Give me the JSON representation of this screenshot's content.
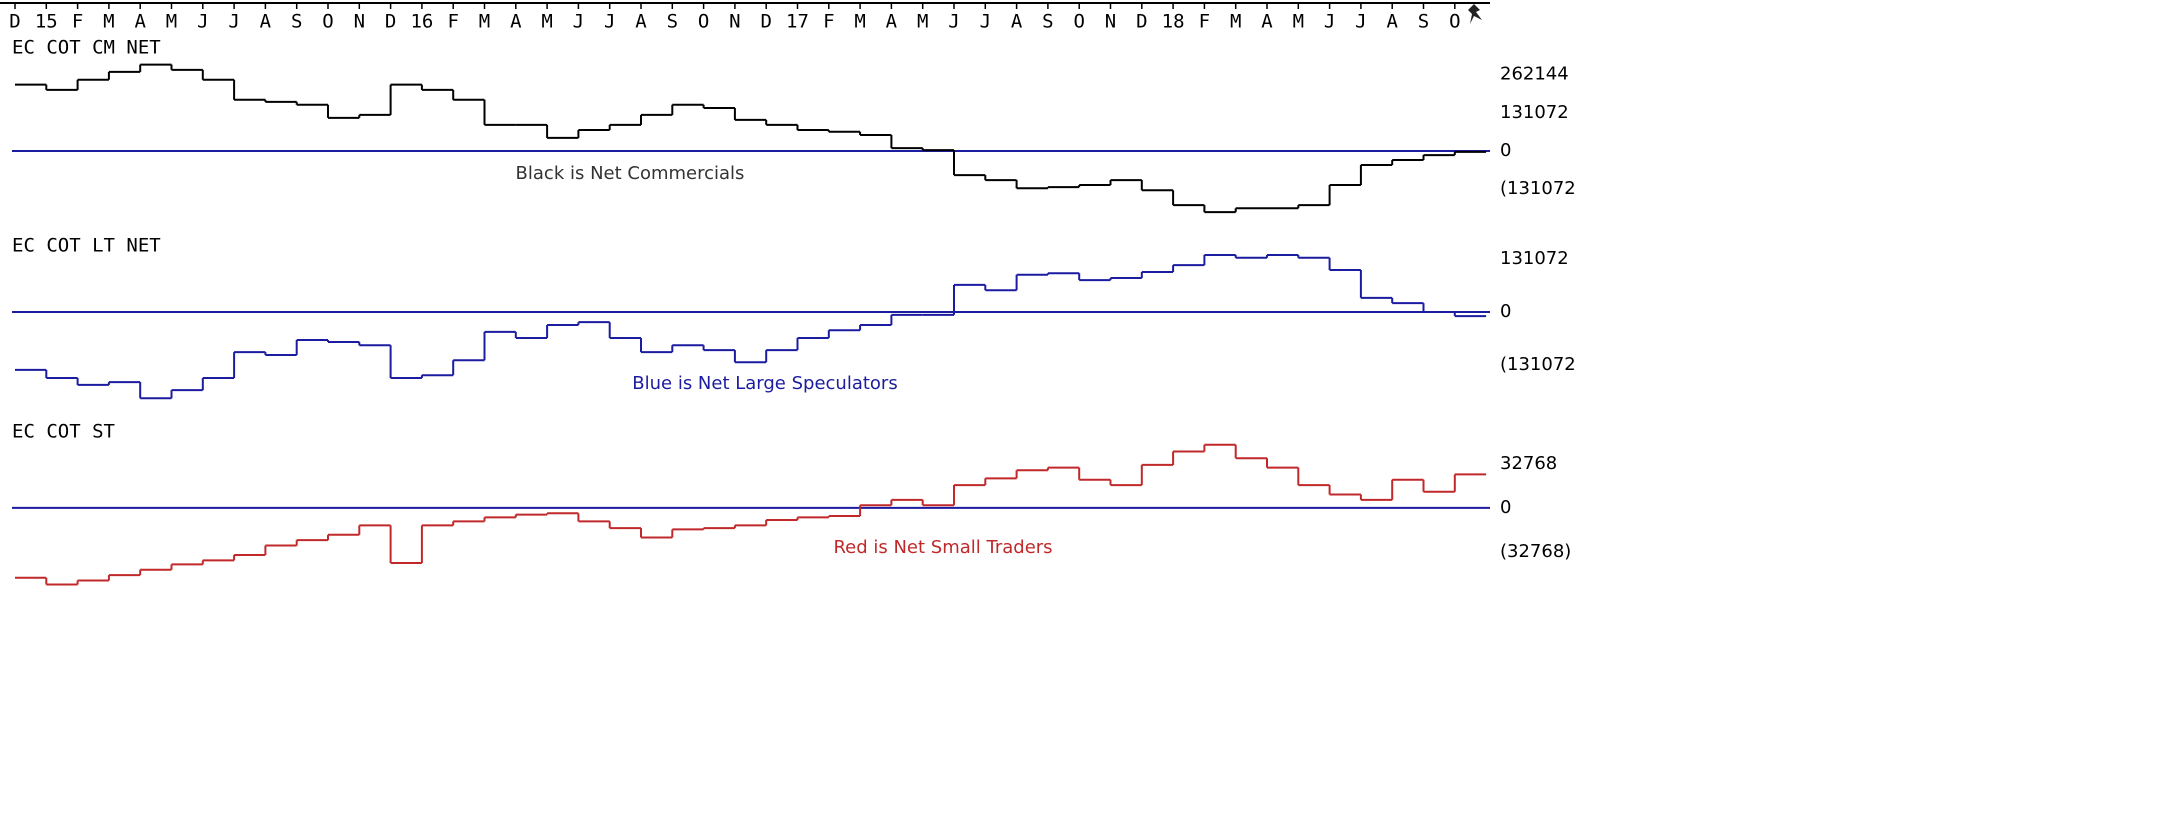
{
  "x_axis": {
    "labels": [
      "D",
      "15",
      "F",
      "M",
      "A",
      "M",
      "J",
      "J",
      "A",
      "S",
      "O",
      "N",
      "D",
      "16",
      "F",
      "M",
      "A",
      "M",
      "J",
      "J",
      "A",
      "S",
      "O",
      "N",
      "D",
      "17",
      "F",
      "M",
      "A",
      "M",
      "J",
      "J",
      "A",
      "S",
      "O",
      "N",
      "D",
      "18",
      "F",
      "M",
      "A",
      "M",
      "J",
      "J",
      "A",
      "S",
      "O"
    ]
  },
  "chart_data": [
    {
      "type": "line",
      "title": "EC COT CM NET",
      "annotation": "Black is Net Commercials",
      "color": "#000000",
      "annotation_color": "#333333",
      "zero_line_color": "#1c1ca0",
      "values": [
        228000,
        210000,
        245000,
        272000,
        297000,
        279000,
        245000,
        176000,
        169000,
        159000,
        114000,
        124000,
        228000,
        210000,
        176000,
        90000,
        90000,
        45000,
        72000,
        90000,
        124000,
        159000,
        148000,
        107000,
        90000,
        72000,
        66000,
        55000,
        10000,
        3000,
        -83000,
        -100000,
        -128000,
        -124000,
        -117000,
        -100000,
        -135000,
        -186000,
        -210000,
        -197000,
        -197000,
        -186000,
        -117000,
        -48000,
        -31000,
        -14000,
        -3000
      ],
      "ylim": [
        -220000,
        330000
      ],
      "yticks": [
        262144,
        131072,
        0,
        {
          "value": -131072,
          "label": "(131072"
        }
      ]
    },
    {
      "type": "line",
      "title": "EC COT LT NET",
      "annotation": "Blue is Net Large Speculators",
      "color": "#1c1ca0",
      "annotation_color": "#1c1ca0",
      "zero_line_color": "#1c1ca0",
      "values": [
        -143000,
        -163000,
        -180000,
        -173000,
        -213000,
        -193000,
        -163000,
        -99000,
        -106000,
        -69000,
        -74000,
        -82000,
        -163000,
        -156000,
        -119000,
        -49000,
        -64000,
        -32000,
        -25000,
        -64000,
        -99000,
        -82000,
        -94000,
        -124000,
        -94000,
        -64000,
        -45000,
        -32000,
        -7000,
        -7000,
        67000,
        54000,
        92000,
        96000,
        79000,
        84000,
        99000,
        116000,
        141000,
        134000,
        141000,
        134000,
        104000,
        35000,
        22000,
        0,
        -10000
      ],
      "ylim": [
        -242000,
        178000
      ],
      "yticks": [
        131072,
        0,
        {
          "value": -131072,
          "label": "(131072"
        }
      ]
    },
    {
      "type": "line",
      "title": "EC COT ST",
      "annotation": "Red is Net Small Traders",
      "color": "#c0282a",
      "annotation_color": "#c0282a",
      "zero_line_color": "#1c1ca0",
      "values": [
        -52000,
        -57000,
        -54000,
        -50000,
        -46000,
        -42000,
        -39000,
        -35000,
        -28000,
        -24000,
        -20000,
        -13000,
        -41000,
        -13000,
        -10000,
        -7000,
        -5000,
        -4000,
        -10000,
        -15000,
        -22000,
        -16000,
        -15000,
        -13000,
        -9000,
        -7000,
        -6000,
        2000,
        6000,
        2000,
        17000,
        22000,
        28000,
        30000,
        21000,
        17000,
        32000,
        42000,
        47000,
        37000,
        30000,
        17000,
        10000,
        6000,
        21000,
        12000,
        25000
      ],
      "ylim": [
        -64800,
        58000
      ],
      "yticks": [
        32768,
        0,
        {
          "value": -32768,
          "label": "(32768)"
        }
      ]
    }
  ]
}
